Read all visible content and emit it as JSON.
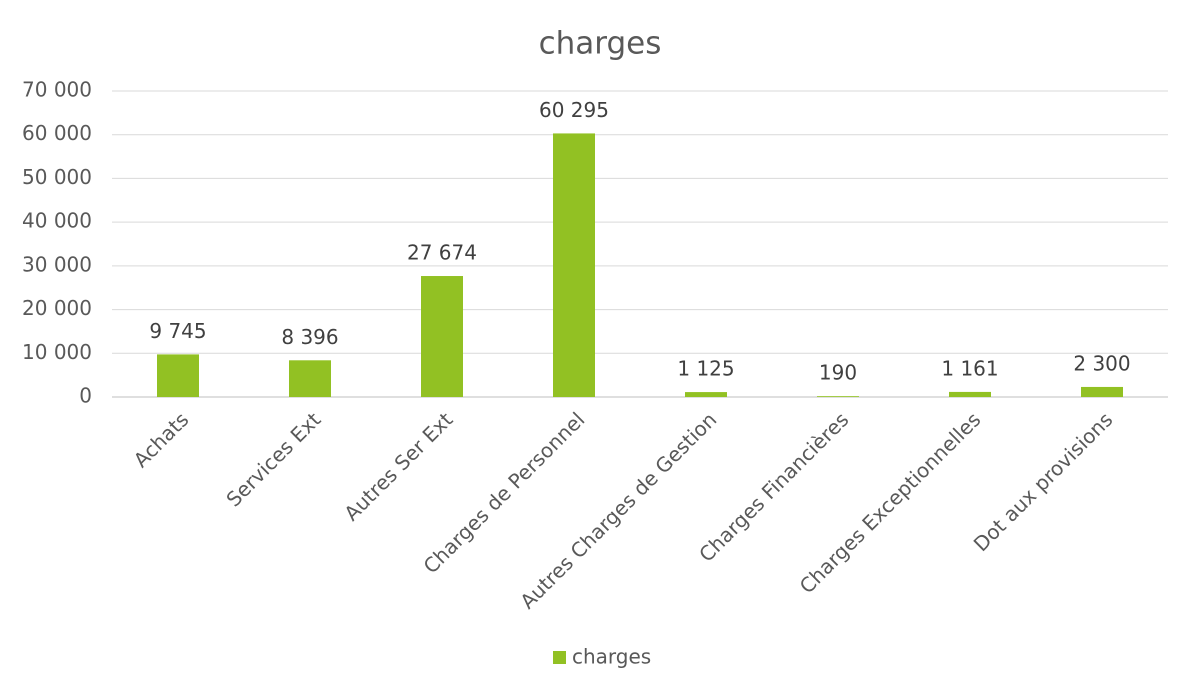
{
  "chart_data": {
    "type": "bar",
    "title": "charges",
    "categories": [
      "Achats",
      "Services Ext",
      "Autres Ser Ext",
      "Charges de Personnel",
      "Autres Charges de Gestion",
      "Charges Financières",
      "Charges Exceptionnelles",
      "Dot aux provisions"
    ],
    "series": [
      {
        "name": "charges",
        "color": "#92c123",
        "values": [
          9745,
          8396,
          27674,
          60295,
          1125,
          190,
          1161,
          2300
        ],
        "value_labels": [
          "9 745",
          "8 396",
          "27 674",
          "60 295",
          "1 125",
          "190",
          "1 161",
          "2 300"
        ]
      }
    ],
    "ylim": [
      0,
      70000
    ],
    "yticks": [
      0,
      {
        "value": 10000,
        "label": "10 000"
      },
      {
        "value": 20000,
        "label": "20 000"
      },
      {
        "value": 30000,
        "label": "30 000"
      },
      {
        "value": 40000,
        "label": "40 000"
      },
      {
        "value": 50000,
        "label": "50 000"
      },
      {
        "value": 60000,
        "label": "60 000"
      },
      {
        "value": 70000,
        "label": "70 000"
      }
    ],
    "grid": true,
    "legend": "bottom"
  }
}
